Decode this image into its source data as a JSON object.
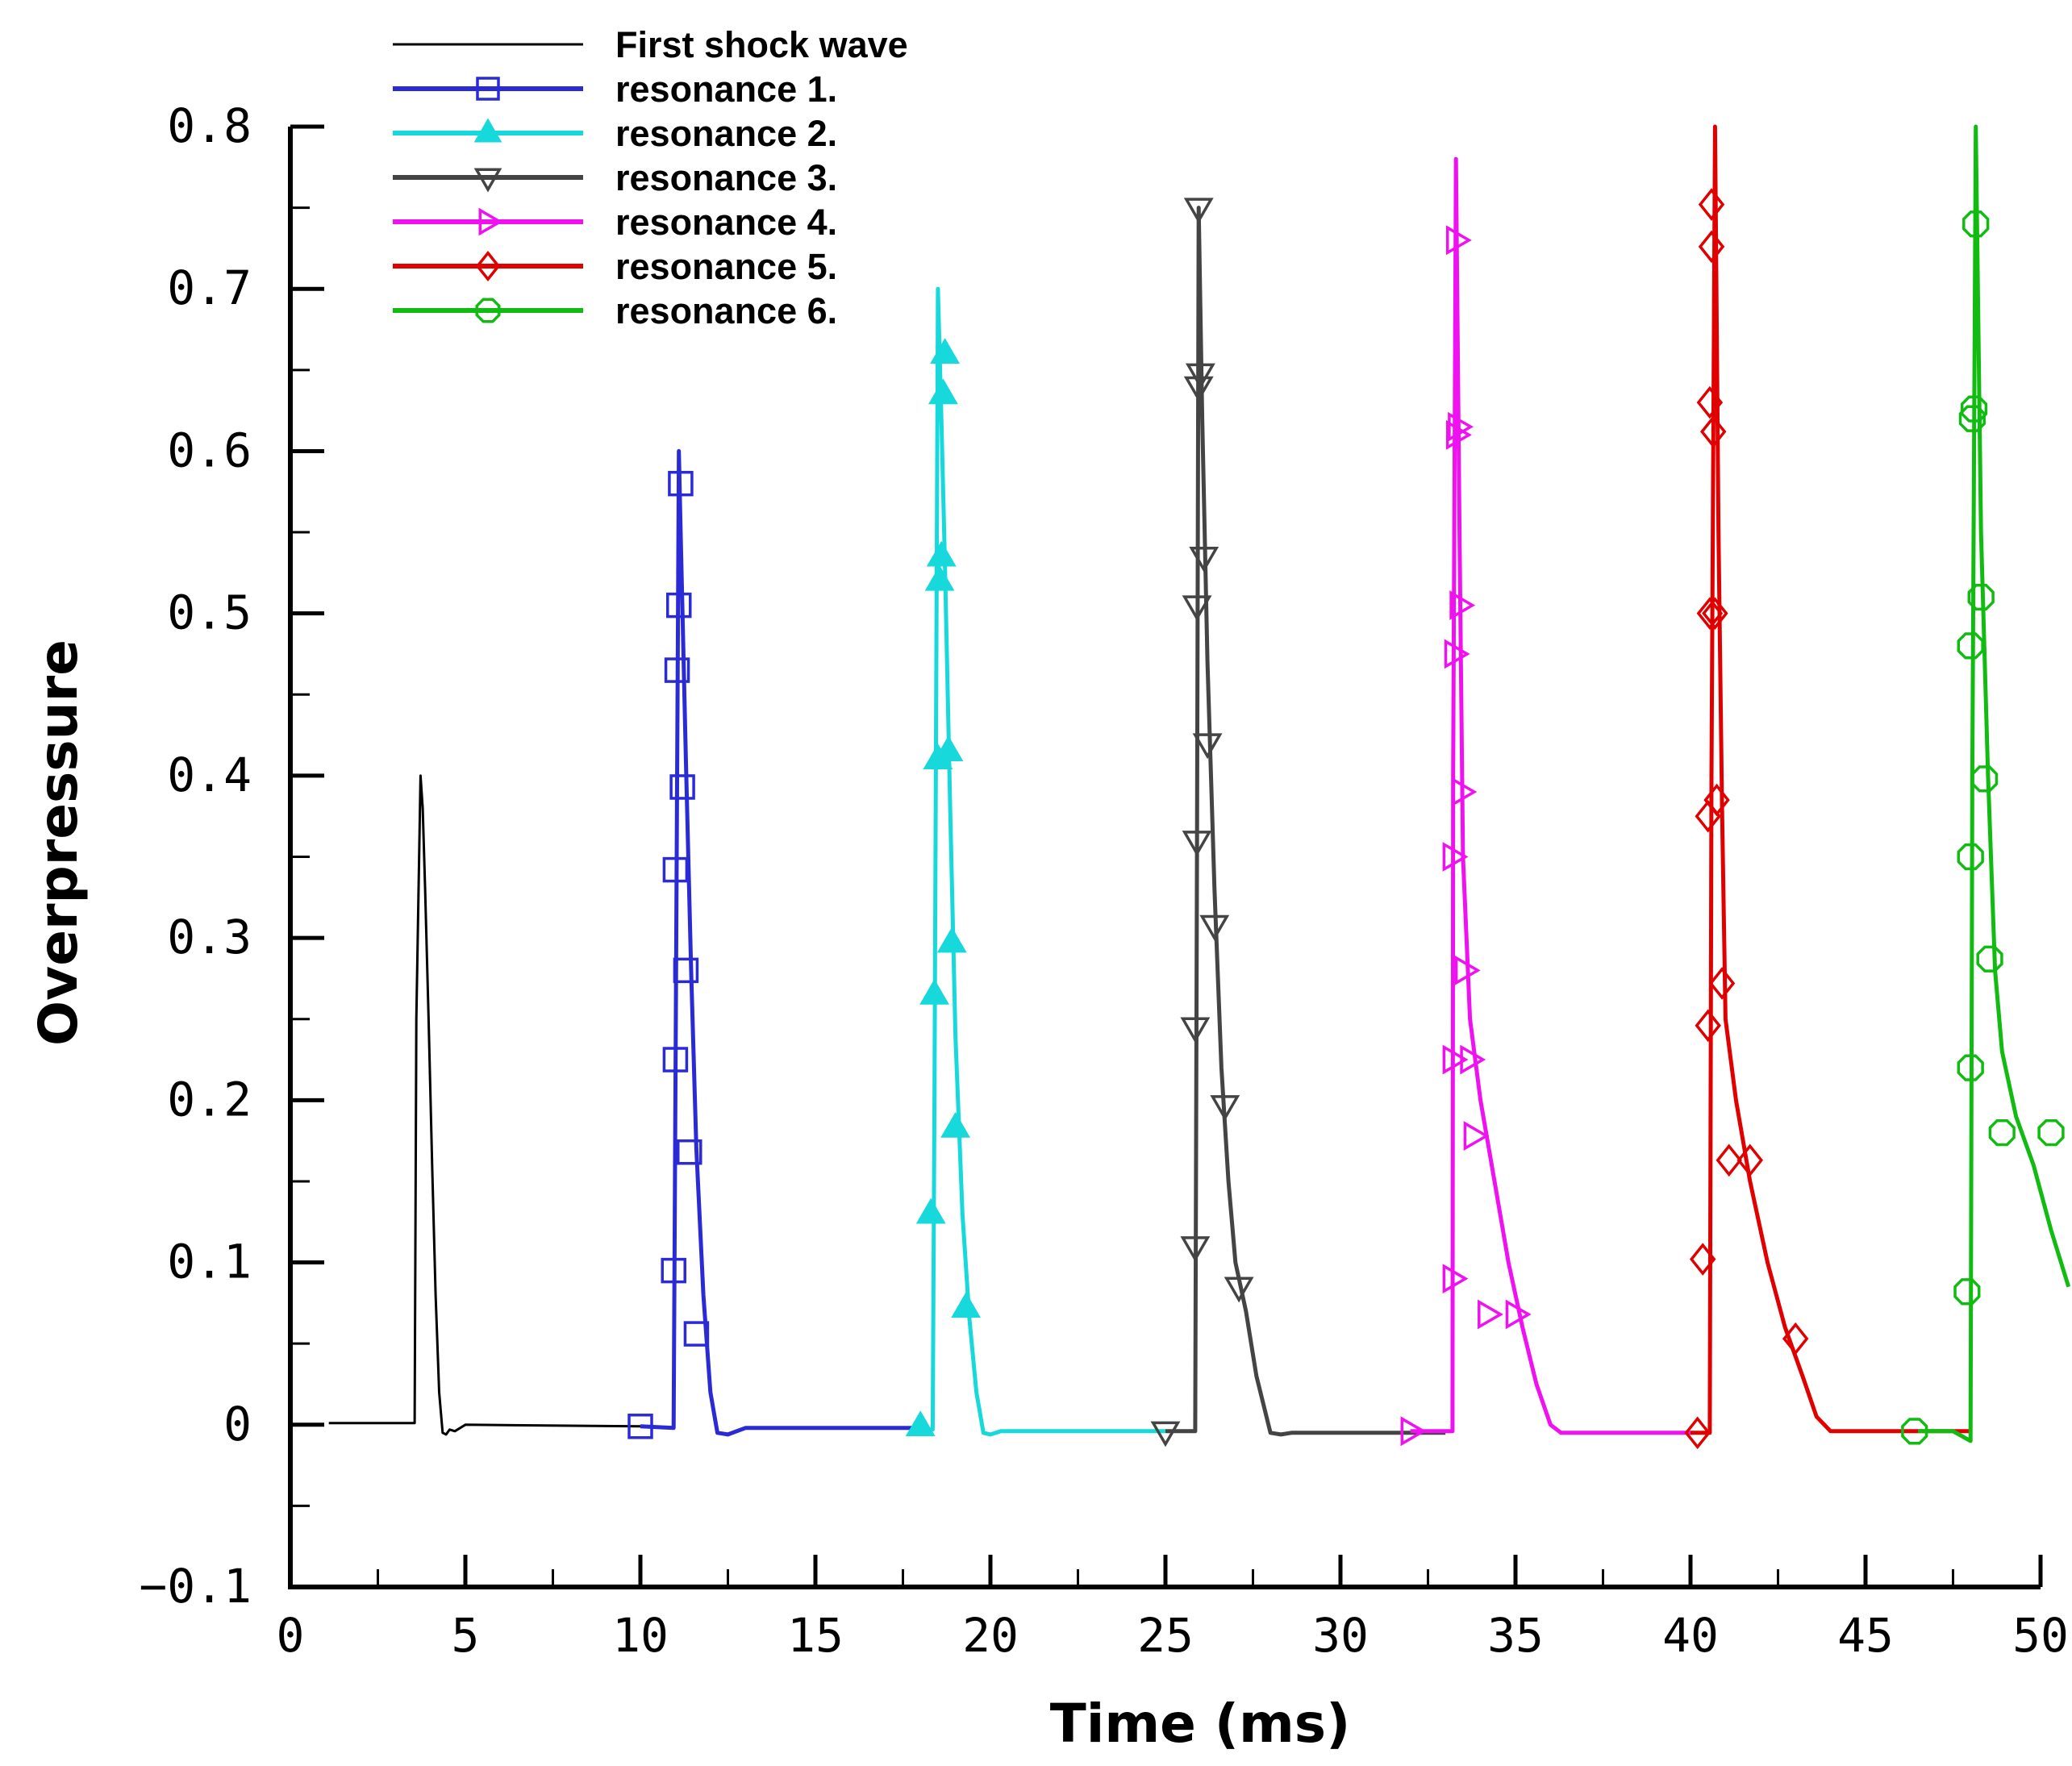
{
  "chart_data": {
    "type": "line",
    "title": "",
    "xlabel": "Time (ms)",
    "ylabel": "Overpressure",
    "xlim": [
      0,
      50
    ],
    "ylim": [
      -0.1,
      0.8
    ],
    "xticks": [
      0,
      5,
      10,
      15,
      20,
      25,
      30,
      35,
      40,
      45,
      50
    ],
    "xtick_labels": [
      "0",
      "5",
      "10",
      "15",
      "20",
      "25",
      "30",
      "35",
      "40",
      "45",
      "50"
    ],
    "yticks": [
      -0.1,
      0,
      0.1,
      0.2,
      0.3,
      0.4,
      0.5,
      0.6,
      0.7,
      0.8
    ],
    "ytick_labels": [
      "−0.1",
      "0",
      "0.1",
      "0.2",
      "0.3",
      "0.4",
      "0.5",
      "0.6",
      "0.7",
      "0.8"
    ],
    "grid": false,
    "legend_position": "top-left",
    "series": [
      {
        "name": "First shock wave",
        "color": "#000000",
        "marker": "none",
        "x": [
          1.1,
          3.55,
          3.6,
          3.72,
          3.78,
          3.85,
          3.95,
          4.05,
          4.15,
          4.25,
          4.35,
          4.45,
          4.55,
          4.7,
          5.0,
          10.0
        ],
        "y": [
          0.001,
          0.001,
          0.25,
          0.4,
          0.38,
          0.33,
          0.25,
          0.16,
          0.08,
          0.02,
          -0.005,
          -0.006,
          -0.003,
          -0.004,
          0.0,
          -0.001
        ]
      },
      {
        "name": "resonance 1.",
        "color": "#2b2bd6",
        "marker": "square",
        "x": [
          10.0,
          10.95,
          11.0,
          11.1,
          11.15,
          11.3,
          11.45,
          11.6,
          11.8,
          12.0,
          12.2,
          12.5,
          13.0,
          18.0
        ],
        "y": [
          -0.001,
          -0.002,
          0.2,
          0.6,
          0.55,
          0.41,
          0.28,
          0.17,
          0.08,
          0.02,
          -0.005,
          -0.006,
          -0.002,
          -0.002
        ],
        "markers_x": [
          10.0,
          10.95,
          11.0,
          11.0,
          11.05,
          11.1,
          11.15,
          11.2,
          11.3,
          11.4,
          11.6
        ],
        "markers_y": [
          -0.001,
          0.095,
          0.225,
          0.342,
          0.465,
          0.505,
          0.58,
          0.393,
          0.28,
          0.168,
          0.056
        ]
      },
      {
        "name": "resonance 2.",
        "color": "#17d9dc",
        "marker": "triangle-up",
        "x": [
          18.0,
          18.35,
          18.4,
          18.5,
          18.6,
          18.7,
          18.85,
          19.0,
          19.2,
          19.4,
          19.6,
          19.8,
          20.0,
          20.3,
          20.8,
          25.0
        ],
        "y": [
          -0.003,
          -0.003,
          0.2,
          0.7,
          0.62,
          0.53,
          0.38,
          0.24,
          0.13,
          0.065,
          0.02,
          -0.005,
          -0.006,
          -0.004,
          -0.004,
          -0.004
        ],
        "markers_x": [
          18.0,
          18.3,
          18.4,
          18.5,
          18.55,
          18.6,
          18.65,
          18.7,
          18.8,
          18.9,
          19.0,
          19.3
        ],
        "markers_y": [
          -0.001,
          0.13,
          0.265,
          0.41,
          0.52,
          0.535,
          0.635,
          0.66,
          0.415,
          0.297,
          0.183,
          0.072
        ]
      },
      {
        "name": "resonance 3.",
        "color": "#444444",
        "marker": "triangle-down",
        "x": [
          25.0,
          25.85,
          25.9,
          25.95,
          26.05,
          26.2,
          26.4,
          26.6,
          26.8,
          27.0,
          27.3,
          27.6,
          28.0,
          28.3,
          28.6,
          33.0
        ],
        "y": [
          -0.004,
          -0.004,
          0.35,
          0.75,
          0.62,
          0.47,
          0.33,
          0.22,
          0.15,
          0.1,
          0.07,
          0.03,
          -0.005,
          -0.006,
          -0.005,
          -0.005
        ],
        "markers_x": [
          25.0,
          25.85,
          25.85,
          25.9,
          25.9,
          25.95,
          25.95,
          26.0,
          26.1,
          26.2,
          26.4,
          26.7,
          27.1
        ],
        "markers_y": [
          -0.004,
          0.11,
          0.245,
          0.36,
          0.505,
          0.64,
          0.75,
          0.648,
          0.535,
          0.42,
          0.308,
          0.197,
          0.085
        ]
      },
      {
        "name": "resonance 4.",
        "color": "#f011f0",
        "marker": "triangle-right",
        "x": [
          32.0,
          33.2,
          33.22,
          33.3,
          33.4,
          33.5,
          33.7,
          34.0,
          34.4,
          34.8,
          35.2,
          35.6,
          36.0,
          36.3,
          40.0
        ],
        "y": [
          -0.004,
          -0.004,
          0.4,
          0.78,
          0.55,
          0.35,
          0.25,
          0.2,
          0.15,
          0.1,
          0.06,
          0.025,
          0.0,
          -0.005,
          -0.005
        ],
        "markers_x": [
          32.0,
          33.2,
          33.2,
          33.2,
          33.25,
          33.3,
          33.3,
          33.35,
          33.4,
          33.45,
          33.55,
          33.7,
          33.8,
          34.2,
          35.0
        ],
        "markers_y": [
          -0.004,
          0.09,
          0.225,
          0.35,
          0.475,
          0.61,
          0.73,
          0.615,
          0.505,
          0.39,
          0.28,
          0.225,
          0.178,
          0.068,
          0.068
        ]
      },
      {
        "name": "resonance 5.",
        "color": "#e00000",
        "marker": "diamond",
        "x": [
          40.0,
          40.55,
          40.6,
          40.7,
          40.8,
          40.9,
          41.0,
          41.3,
          41.7,
          42.2,
          42.7,
          43.2,
          43.6,
          44.0,
          48.0
        ],
        "y": [
          -0.005,
          -0.005,
          0.4,
          0.8,
          0.55,
          0.38,
          0.25,
          0.2,
          0.15,
          0.1,
          0.06,
          0.03,
          0.005,
          -0.004,
          -0.004
        ],
        "markers_x": [
          40.2,
          40.35,
          40.5,
          40.5,
          40.55,
          40.55,
          40.6,
          40.6,
          40.65,
          40.7,
          40.75,
          40.9,
          41.1,
          41.7,
          43.0
        ],
        "markers_y": [
          -0.005,
          0.102,
          0.246,
          0.375,
          0.5,
          0.63,
          0.752,
          0.726,
          0.612,
          0.5,
          0.385,
          0.272,
          0.163,
          0.163,
          0.053
        ]
      },
      {
        "name": "resonance 6.",
        "color": "#11bb11",
        "marker": "circle",
        "x": [
          46.5,
          47.0,
          47.5,
          48.0,
          48.05,
          48.15,
          48.3,
          48.5,
          48.7,
          48.9,
          49.3,
          49.8,
          50.3,
          50.8
        ],
        "y": [
          -0.004,
          -0.004,
          -0.004,
          -0.01,
          0.4,
          0.8,
          0.55,
          0.4,
          0.28,
          0.23,
          0.19,
          0.16,
          0.12,
          0.085
        ],
        "markers_x": [
          46.4,
          47.9,
          48.0,
          48.0,
          48.0,
          48.05,
          48.1,
          48.15,
          48.3,
          48.4,
          48.55,
          48.9,
          50.3
        ],
        "markers_y": [
          -0.004,
          0.082,
          0.22,
          0.35,
          0.48,
          0.62,
          0.626,
          0.74,
          0.51,
          0.398,
          0.287,
          0.18,
          0.18
        ]
      }
    ]
  }
}
